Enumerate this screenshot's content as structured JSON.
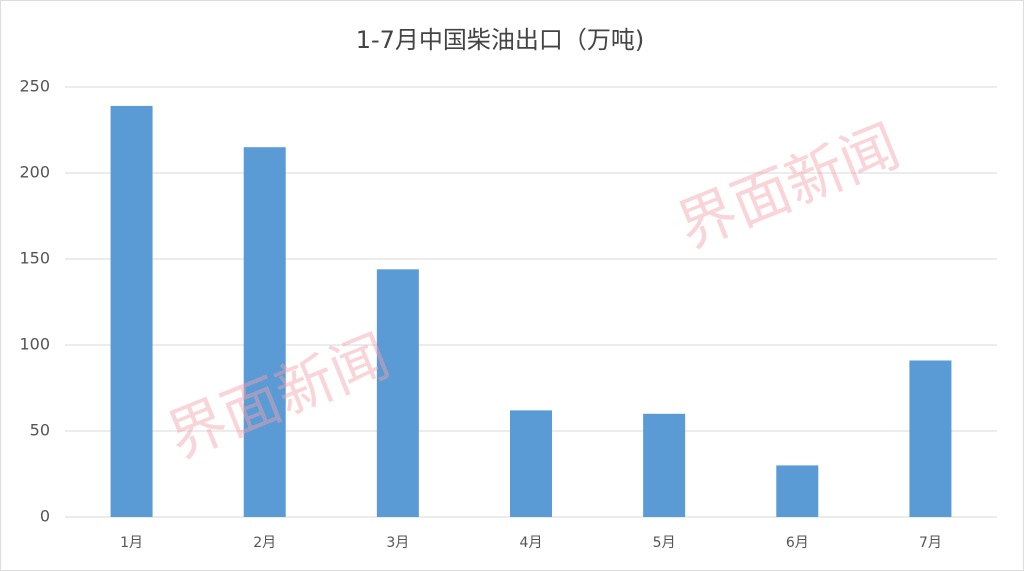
{
  "chart_data": {
    "type": "bar",
    "title": "1-7月中国柴油出口（万吨)",
    "categories": [
      "1月",
      "2月",
      "3月",
      "4月",
      "5月",
      "6月",
      "7月"
    ],
    "values": [
      239,
      215,
      144,
      62,
      60,
      30,
      91
    ],
    "color": "#5b9bd5",
    "ylim": [
      0,
      250
    ],
    "yticks": [
      0,
      50,
      100,
      150,
      200,
      250
    ],
    "grid": true,
    "watermark": "界面新闻"
  }
}
